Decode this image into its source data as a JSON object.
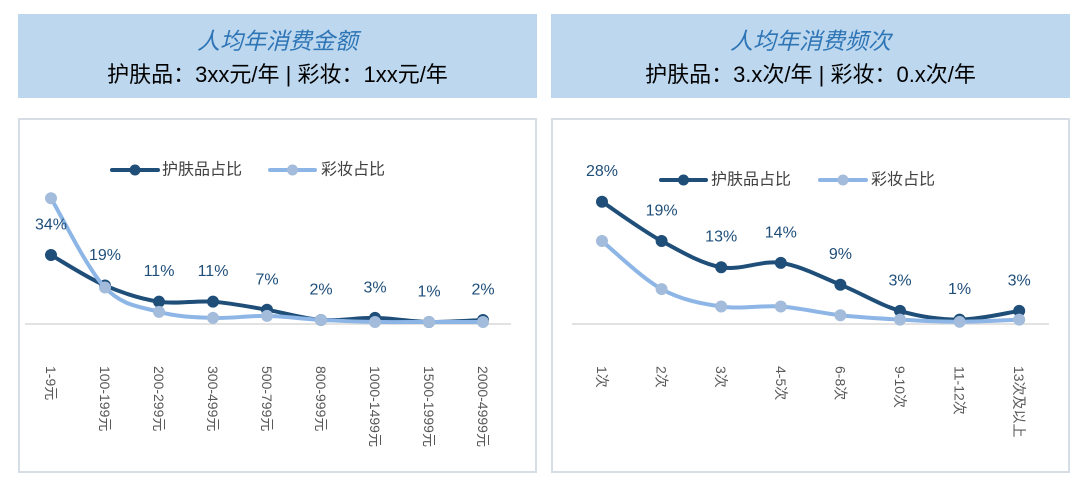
{
  "chart_data": [
    {
      "type": "line",
      "title": "人均年消费金额",
      "subtitle": "护肤品：3xx元/年 | 彩妆：1xx元/年",
      "categories": [
        "1-9元",
        "100-199元",
        "200-299元",
        "300-499元",
        "500-799元",
        "800-999元",
        "1000-1499元",
        "1500-1999元",
        "2000-4999元"
      ],
      "series": [
        {
          "name": "护肤品占比",
          "values": [
            34,
            19,
            11,
            11,
            7,
            2,
            3,
            1,
            2
          ],
          "labels": [
            "34%",
            "19%",
            "11%",
            "11%",
            "7%",
            "2%",
            "3%",
            "1%",
            "2%"
          ],
          "color": "#1F4E79",
          "marker_color": "#1F4E79"
        },
        {
          "name": "彩妆占比",
          "values": [
            62,
            18,
            6,
            3,
            4,
            2,
            1,
            1,
            1
          ],
          "color": "#8DB6E6",
          "marker_color": "#A3BCDB"
        }
      ],
      "ylim": [
        0,
        70
      ],
      "smooth": true,
      "grid": false,
      "legend": "top"
    },
    {
      "type": "line",
      "title": "人均年消费频次",
      "subtitle": "护肤品：3.x次/年 | 彩妆：0.x次/年",
      "categories": [
        "1次",
        "2次",
        "3次",
        "4-5次",
        "6-8次",
        "9-10次",
        "11-12次",
        "13次及以上"
      ],
      "series": [
        {
          "name": "护肤品占比",
          "values": [
            28,
            19,
            13,
            14,
            9,
            3,
            1,
            3
          ],
          "labels": [
            "28%",
            "19%",
            "13%",
            "14%",
            "9%",
            "3%",
            "1%",
            "3%"
          ],
          "color": "#1F4E79",
          "marker_color": "#1F4E79"
        },
        {
          "name": "彩妆占比",
          "values": [
            19,
            8,
            4,
            4,
            2,
            1,
            0.5,
            1
          ],
          "color": "#8DB6E6",
          "marker_color": "#A3BCDB"
        }
      ],
      "ylim": [
        0,
        30
      ],
      "smooth": true,
      "grid": false,
      "legend": "top"
    }
  ]
}
